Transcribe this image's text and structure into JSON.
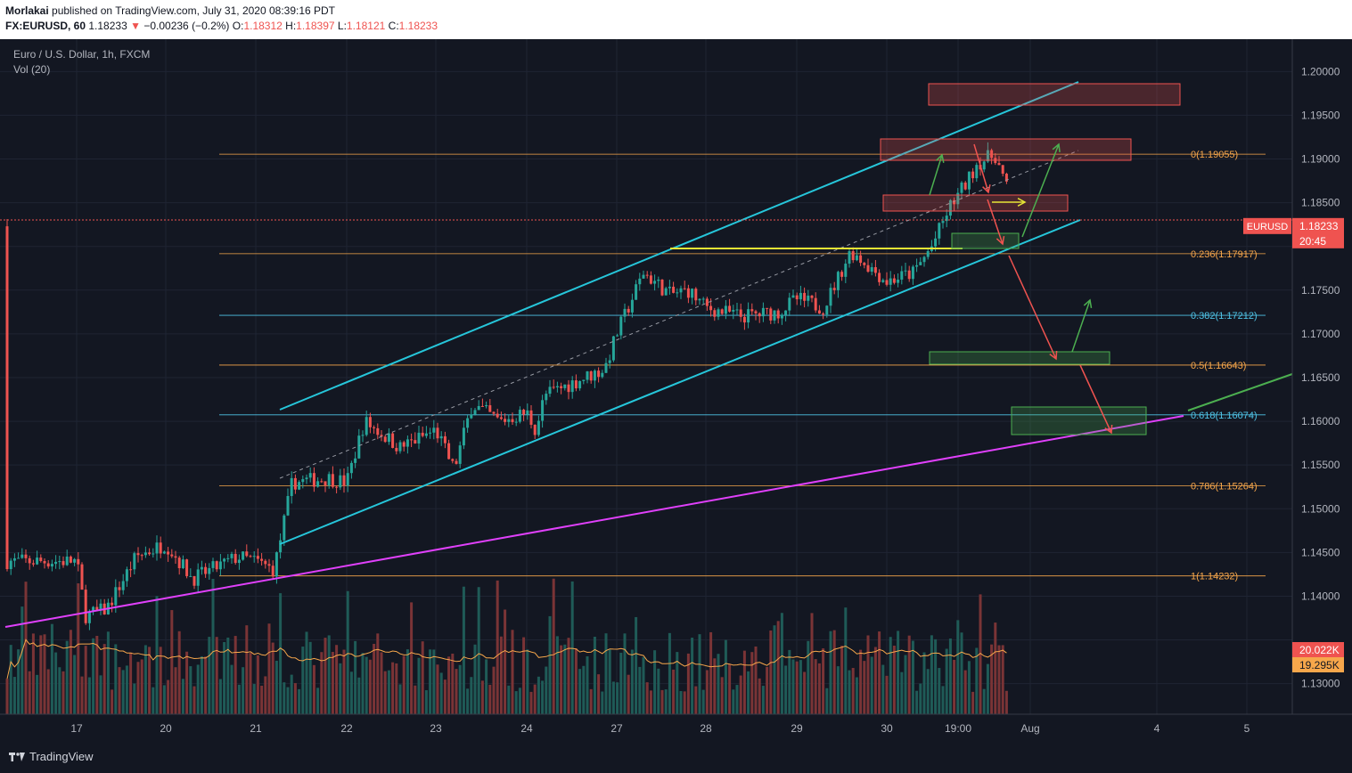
{
  "header": {
    "author": "Morlakai",
    "published_text": "published on TradingView.com, July 31, 2020 08:39:16 PDT",
    "symbol_label": "FX:EURUSD, 60",
    "last": "1.18233",
    "change": "−0.00236 (−0.2%)",
    "o_label": "O:",
    "o": "1.18312",
    "h_label": "H:",
    "h": "1.18397",
    "l_label": "L:",
    "l": "1.18121",
    "c_label": "C:",
    "c": "1.18233"
  },
  "chart_data": {
    "type": "candlestick",
    "title": "Euro / U.S. Dollar, 1h, FXCM",
    "volume_label": "Vol (20)",
    "x_ticks": [
      "17",
      "20",
      "21",
      "22",
      "23",
      "24",
      "27",
      "28",
      "29",
      "30",
      "19:00",
      "Aug",
      "4",
      "5"
    ],
    "y_ticks": [
      "1.20000",
      "1.19500",
      "1.19000",
      "1.18500",
      "1.18000",
      "1.17500",
      "1.17000",
      "1.16500",
      "1.16000",
      "1.15500",
      "1.15000",
      "1.14500",
      "1.14000",
      "1.13500",
      "1.13000"
    ],
    "y_range": [
      1.1265,
      1.2037
    ],
    "price_labels": {
      "symbol": "EURUSD",
      "last_price": "1.18233",
      "countdown": "20:45",
      "last_value": 1.18233,
      "volume": "20.022K",
      "volume_ma": "19.295K"
    },
    "fib_levels": [
      {
        "label": "0(1.19055)",
        "value": 1.19055,
        "color": "#f7a74b"
      },
      {
        "label": "0.236(1.17917)",
        "value": 1.17917,
        "color": "#f7a74b"
      },
      {
        "label": "0.382(1.17212)",
        "value": 1.17212,
        "color": "#4fc3e6"
      },
      {
        "label": "0.5(1.16643)",
        "value": 1.16643,
        "color": "#f7a74b"
      },
      {
        "label": "0.618(1.16074)",
        "value": 1.16074,
        "color": "#4fc3e6"
      },
      {
        "label": "0.786(1.15264)",
        "value": 1.15264,
        "color": "#f7a74b"
      },
      {
        "label": "1(1.14232)",
        "value": 1.14232,
        "color": "#f7a74b"
      }
    ],
    "price_path": [
      [
        17,
        1.144
      ],
      [
        17.3,
        1.1378
      ],
      [
        18,
        1.1385
      ],
      [
        19,
        1.1445
      ],
      [
        20,
        1.146
      ],
      [
        20.3,
        1.142
      ],
      [
        20.8,
        1.1445
      ],
      [
        21,
        1.144
      ],
      [
        21.2,
        1.143
      ],
      [
        21.4,
        1.153
      ],
      [
        21.8,
        1.1535
      ],
      [
        22,
        1.153
      ],
      [
        22.2,
        1.16
      ],
      [
        22.6,
        1.157
      ],
      [
        23,
        1.159
      ],
      [
        23.2,
        1.1545
      ],
      [
        23.4,
        1.162
      ],
      [
        23.7,
        1.16
      ],
      [
        24,
        1.161
      ],
      [
        24.3,
        1.159
      ],
      [
        24.6,
        1.163
      ],
      [
        26.6,
        1.166
      ],
      [
        27,
        1.17
      ],
      [
        27.3,
        1.177
      ],
      [
        27.6,
        1.1745
      ],
      [
        27.8,
        1.175
      ],
      [
        28,
        1.173
      ],
      [
        28.4,
        1.172
      ],
      [
        28.8,
        1.1725
      ],
      [
        29,
        1.174
      ],
      [
        29.3,
        1.173
      ],
      [
        29.6,
        1.1795
      ],
      [
        30,
        1.176
      ],
      [
        30.3,
        1.177
      ],
      [
        30.5,
        1.18
      ],
      [
        30.7,
        1.1845
      ],
      [
        30.9,
        1.1875
      ],
      [
        31.0,
        1.1895
      ],
      [
        31.2,
        1.1905
      ],
      [
        31.35,
        1.186
      ],
      [
        31.55,
        1.1823
      ]
    ]
  }
}
